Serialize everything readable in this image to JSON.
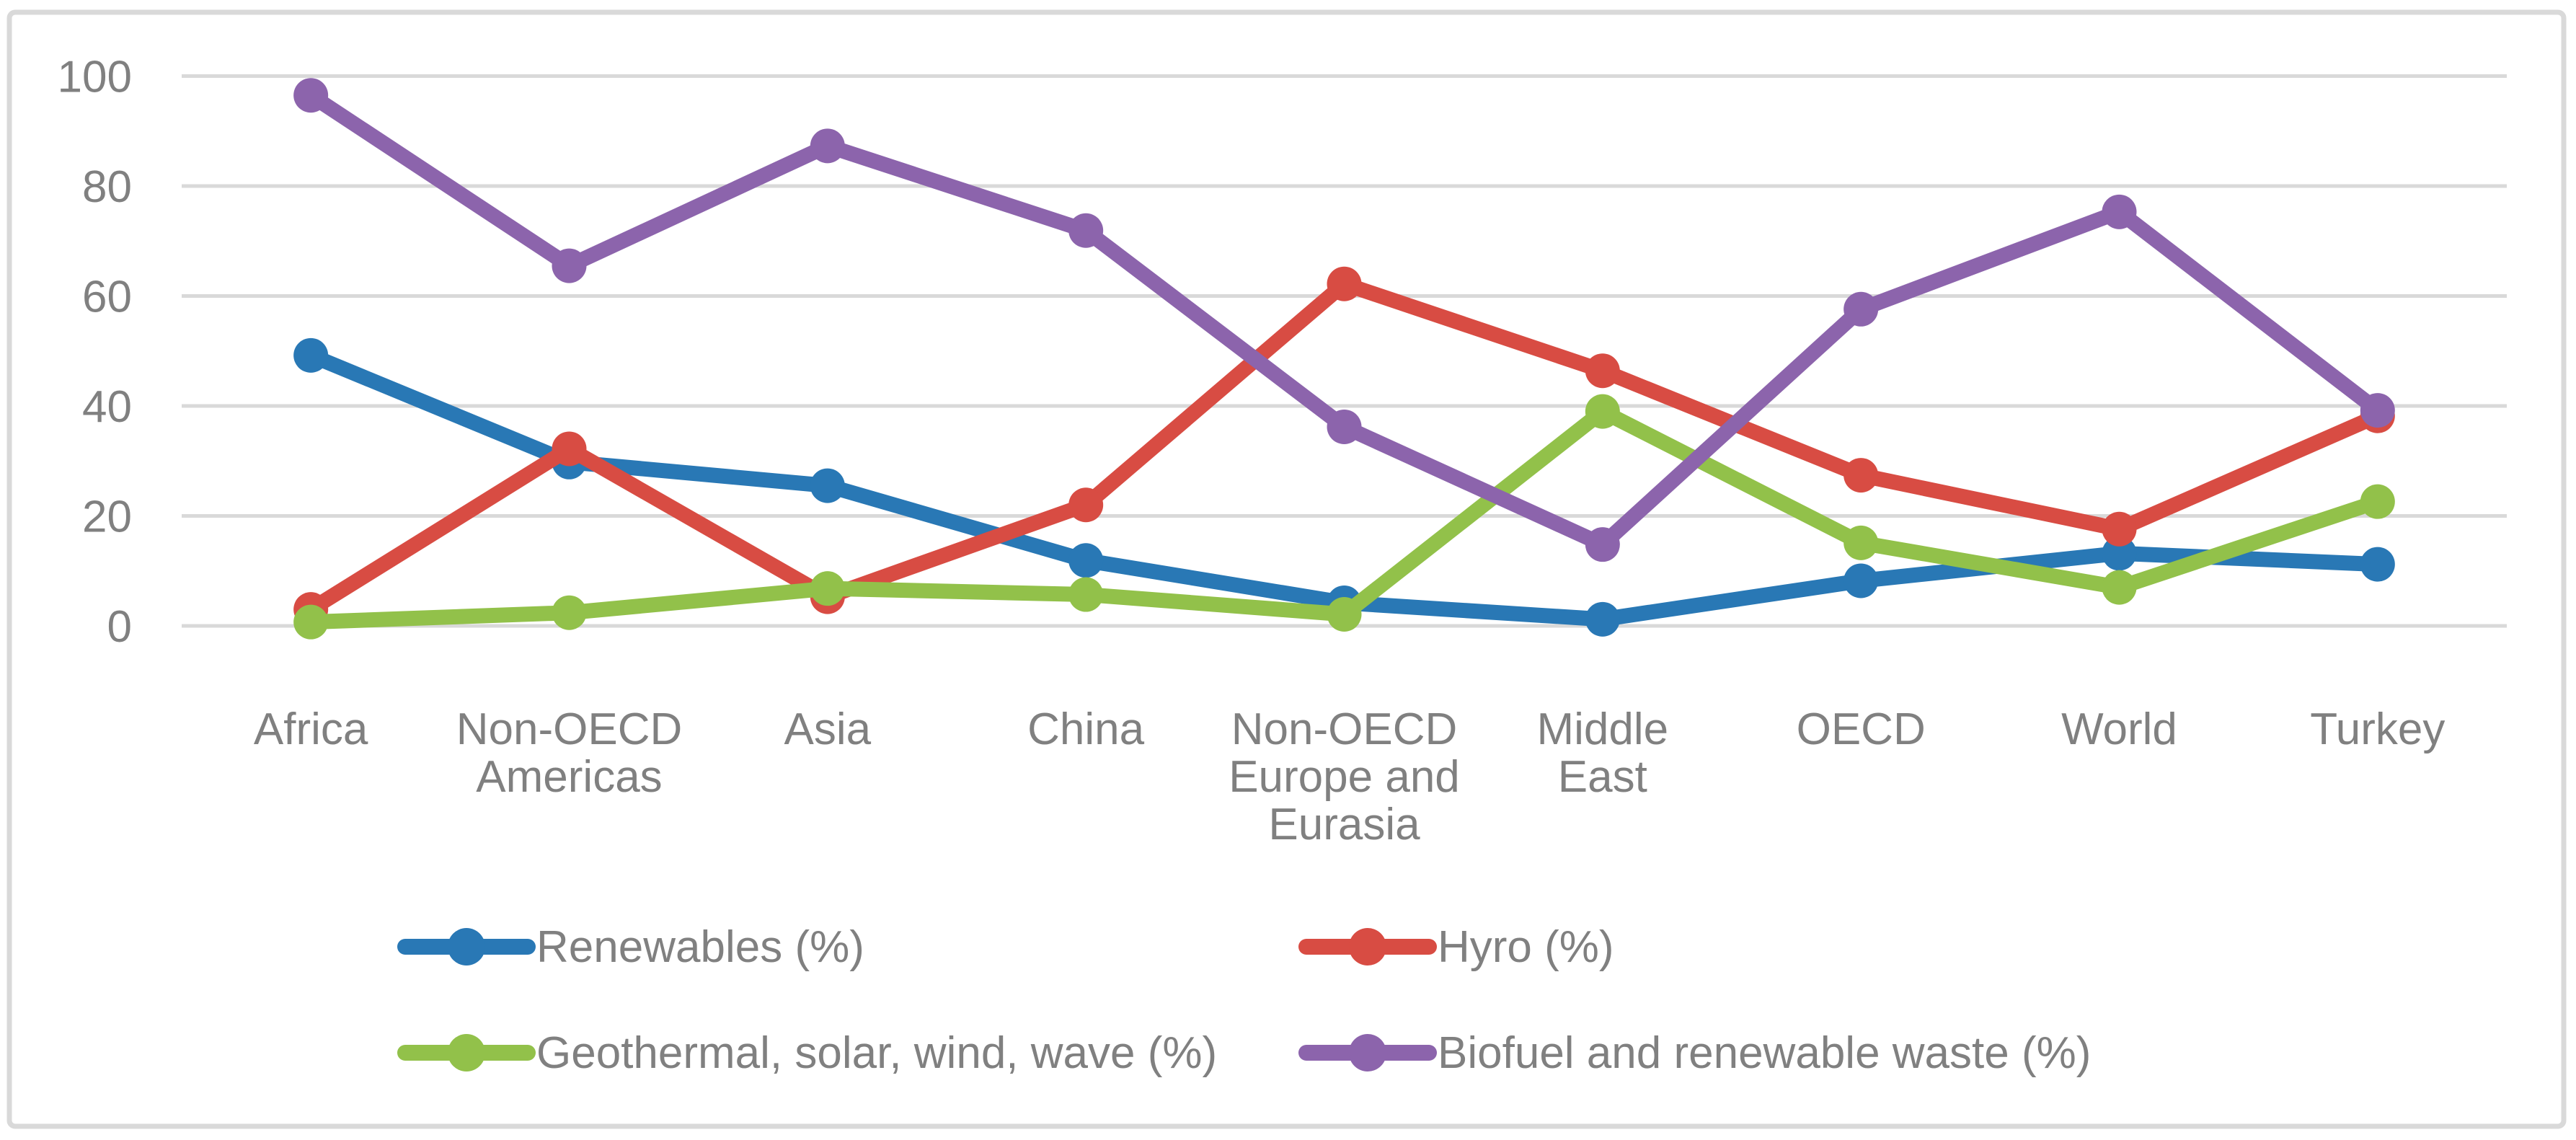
{
  "chart_data": {
    "type": "line",
    "title": "",
    "xlabel": "",
    "ylabel": "",
    "ylim": [
      0,
      100
    ],
    "yticks": [
      0,
      20,
      40,
      60,
      80,
      100
    ],
    "grid": true,
    "legend_position": "bottom",
    "categories": [
      "Africa",
      "Non-OECD Americas",
      "Asia",
      "China",
      "Non-OECD Europe and Eurasia",
      "Middle East",
      "OECD",
      "World",
      "Turkey"
    ],
    "category_label_lines": [
      [
        "Africa"
      ],
      [
        "Non-OECD",
        "Americas"
      ],
      [
        "Asia"
      ],
      [
        "China"
      ],
      [
        "Non-OECD",
        "Europe and",
        "Eurasia"
      ],
      [
        "Middle",
        "East"
      ],
      [
        "OECD"
      ],
      [
        "World"
      ],
      [
        "Turkey"
      ]
    ],
    "series": [
      {
        "name": "Renewables (%)",
        "color": "#2978B5",
        "values": [
          49.2,
          29.8,
          25.5,
          11.9,
          4.2,
          1.2,
          8.2,
          13.2,
          11.2
        ]
      },
      {
        "name": "Hyro (%)",
        "color": "#D84C43",
        "values": [
          3.0,
          32.2,
          5.3,
          22.0,
          62.2,
          46.4,
          27.4,
          17.6,
          38.2
        ]
      },
      {
        "name": "Geothermal, solar, wind, wave (%)",
        "color": "#92C14A",
        "values": [
          0.7,
          2.4,
          6.8,
          5.7,
          2.1,
          39.0,
          15.1,
          7.0,
          22.6
        ]
      },
      {
        "name": "Biofuel and renewable waste (%)",
        "color": "#8C64AC",
        "values": [
          96.5,
          65.5,
          87.3,
          71.9,
          36.2,
          14.8,
          57.6,
          75.3,
          39.2
        ]
      }
    ],
    "legend_rows": [
      [
        "Renewables (%)",
        "Hyro (%)"
      ],
      [
        "Geothermal, solar, wind, wave (%)",
        "Biofuel and renewable waste (%)"
      ]
    ]
  },
  "style_colors": {
    "gridline": "#D9D9D9",
    "chart_border": "#D9D9D9",
    "axis_text": "#808080",
    "background": "#FFFFFF"
  }
}
